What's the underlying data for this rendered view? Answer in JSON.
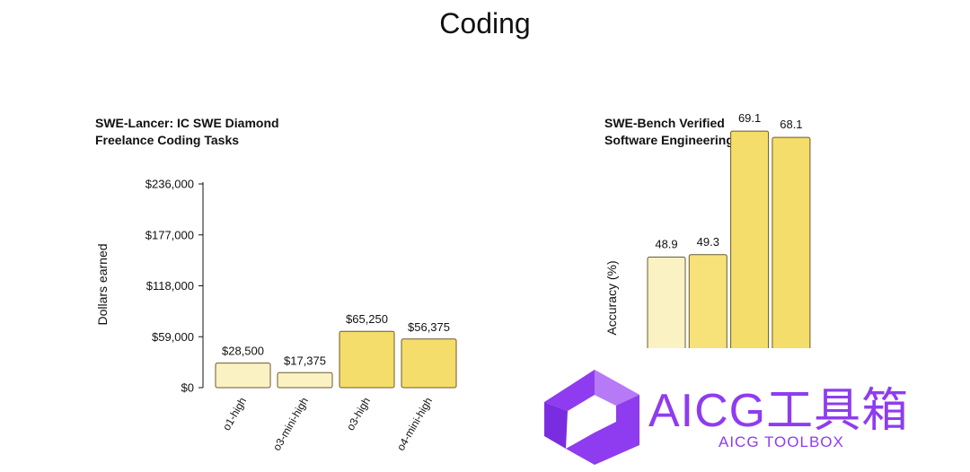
{
  "page_title": "Coding",
  "colors": {
    "light_bar": "#fbf2c4",
    "mid_bar": "#f7e27a",
    "strong_bar": "#f5dd6b",
    "bar_stroke": "#6b5a2a",
    "watermark": "#8f3cf0"
  },
  "watermark": {
    "title": "AICG工具箱",
    "subtitle": "AICG TOOLBOX",
    "logo_icon": "aicg-logo-icon"
  },
  "chart_data": [
    {
      "type": "bar",
      "title_line1": "SWE-Lancer: IC SWE Diamond",
      "title_line2": "Freelance Coding Tasks",
      "ylabel": "Dollars earned",
      "categories": [
        "o1-high",
        "o3-mini-high",
        "o3-high",
        "o4-mini-high"
      ],
      "values": [
        28500,
        17375,
        65250,
        56375
      ],
      "value_labels": [
        "$28,500",
        "$17,375",
        "$65,250",
        "$56,375"
      ],
      "yticks": [
        0,
        59000,
        118000,
        177000,
        236000
      ],
      "ytick_labels": [
        "$0",
        "$59,000",
        "$118,000",
        "$177,000",
        "$236,000"
      ],
      "ylim": [
        0,
        236000
      ],
      "bar_colors": [
        "#fbf2c4",
        "#fbf2c4",
        "#f5dd6b",
        "#f5dd6b"
      ]
    },
    {
      "type": "bar",
      "title_line1": "SWE-Bench Verified",
      "title_line2": "Software Engineering",
      "ylabel": "Accuracy (%)",
      "values": [
        48.9,
        49.3,
        69.1,
        68.1
      ],
      "value_labels": [
        "48.9",
        "49.3",
        "69.1",
        "68.1"
      ],
      "bar_colors": [
        "#fbf2c4",
        "#f7e27a",
        "#f5dd6b",
        "#f5dd6b"
      ]
    }
  ]
}
